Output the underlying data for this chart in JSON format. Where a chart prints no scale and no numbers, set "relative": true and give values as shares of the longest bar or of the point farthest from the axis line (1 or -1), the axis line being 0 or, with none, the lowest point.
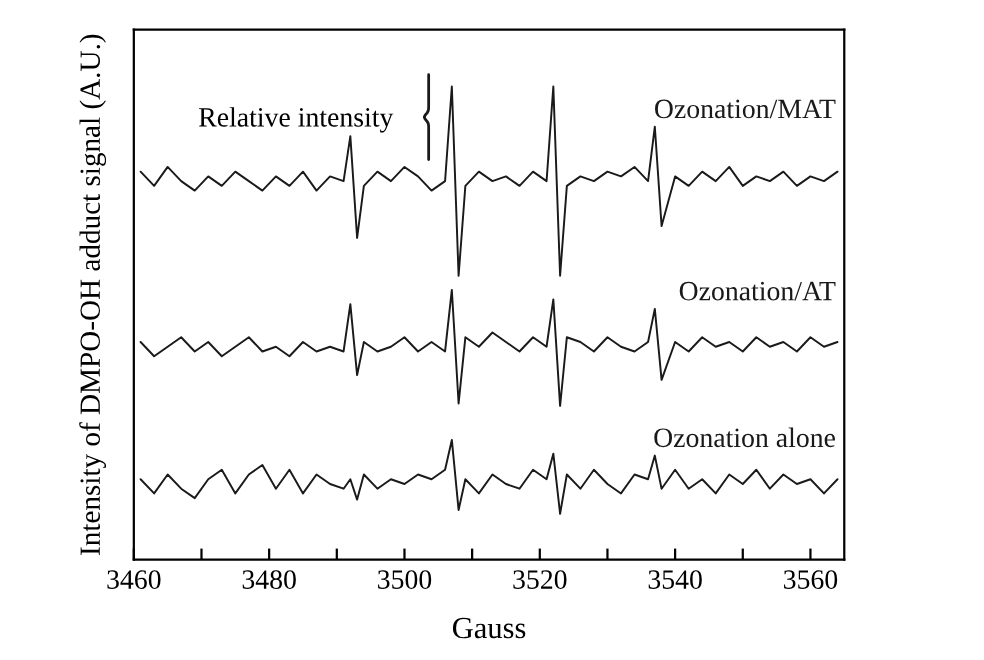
{
  "chart_data": {
    "type": "line",
    "relative": true,
    "xlabel": "Gauss",
    "ylabel": "Intensity of DMPO-OH adduct signal (A.U.)",
    "annotations": [
      "Relative intensity"
    ],
    "x": [
      3461,
      3463,
      3465,
      3467,
      3469,
      3471,
      3473,
      3475,
      3477,
      3479,
      3481,
      3483,
      3485,
      3487,
      3489,
      3491,
      3492,
      3493,
      3494,
      3496,
      3498,
      3500,
      3502,
      3504,
      3506,
      3507,
      3508,
      3509,
      3511,
      3513,
      3515,
      3517,
      3519,
      3521,
      3522,
      3523,
      3524,
      3526,
      3528,
      3530,
      3532,
      3534,
      3536,
      3537,
      3538,
      3540,
      3542,
      3544,
      3546,
      3548,
      3550,
      3552,
      3554,
      3556,
      3558,
      3560,
      3562,
      3564
    ],
    "series": [
      {
        "name": "Ozonation/MAT",
        "color": "#1a1a1a",
        "values": [
          0.82,
          0.79,
          0.83,
          0.8,
          0.78,
          0.81,
          0.79,
          0.82,
          0.8,
          0.78,
          0.81,
          0.79,
          0.82,
          0.78,
          0.81,
          0.8,
          0.895,
          0.68,
          0.79,
          0.82,
          0.8,
          0.83,
          0.81,
          0.78,
          0.8,
          1.0,
          0.6,
          0.79,
          0.82,
          0.8,
          0.81,
          0.79,
          0.82,
          0.8,
          1.0,
          0.6,
          0.79,
          0.81,
          0.8,
          0.82,
          0.81,
          0.83,
          0.8,
          0.915,
          0.705,
          0.81,
          0.79,
          0.82,
          0.8,
          0.83,
          0.79,
          0.81,
          0.8,
          0.82,
          0.79,
          0.81,
          0.8,
          0.82
        ]
      },
      {
        "name": "Ozonation/AT",
        "color": "#1a1a1a",
        "values": [
          0.46,
          0.43,
          0.45,
          0.47,
          0.44,
          0.46,
          0.43,
          0.45,
          0.47,
          0.44,
          0.45,
          0.43,
          0.46,
          0.44,
          0.45,
          0.44,
          0.54,
          0.39,
          0.46,
          0.44,
          0.45,
          0.47,
          0.44,
          0.46,
          0.44,
          0.57,
          0.33,
          0.47,
          0.45,
          0.48,
          0.46,
          0.44,
          0.47,
          0.45,
          0.55,
          0.325,
          0.47,
          0.46,
          0.44,
          0.47,
          0.45,
          0.44,
          0.46,
          0.53,
          0.38,
          0.46,
          0.44,
          0.47,
          0.45,
          0.46,
          0.44,
          0.47,
          0.45,
          0.46,
          0.44,
          0.47,
          0.45,
          0.46
        ]
      },
      {
        "name": "Ozonation alone",
        "color": "#1a1a1a",
        "values": [
          0.17,
          0.14,
          0.18,
          0.15,
          0.13,
          0.17,
          0.19,
          0.14,
          0.18,
          0.2,
          0.15,
          0.19,
          0.14,
          0.18,
          0.16,
          0.15,
          0.17,
          0.127,
          0.18,
          0.15,
          0.17,
          0.16,
          0.18,
          0.17,
          0.19,
          0.253,
          0.105,
          0.17,
          0.14,
          0.18,
          0.16,
          0.15,
          0.19,
          0.17,
          0.224,
          0.097,
          0.18,
          0.15,
          0.19,
          0.16,
          0.14,
          0.18,
          0.17,
          0.22,
          0.15,
          0.19,
          0.15,
          0.17,
          0.14,
          0.18,
          0.16,
          0.19,
          0.15,
          0.18,
          0.16,
          0.17,
          0.14,
          0.17
        ]
      }
    ],
    "xlim": [
      3460,
      3565
    ],
    "xticks": [
      3460,
      {
        "value": 3470,
        "label": null
      },
      3480,
      {
        "value": 3490,
        "label": null
      },
      3500,
      {
        "value": 3510,
        "label": null
      },
      3520,
      {
        "value": 3530,
        "label": null
      },
      3540,
      {
        "value": 3550,
        "label": null
      },
      3560
    ],
    "tick_labels": "x",
    "legend": false,
    "grid": false,
    "marker": "none",
    "line_style": "solid"
  }
}
